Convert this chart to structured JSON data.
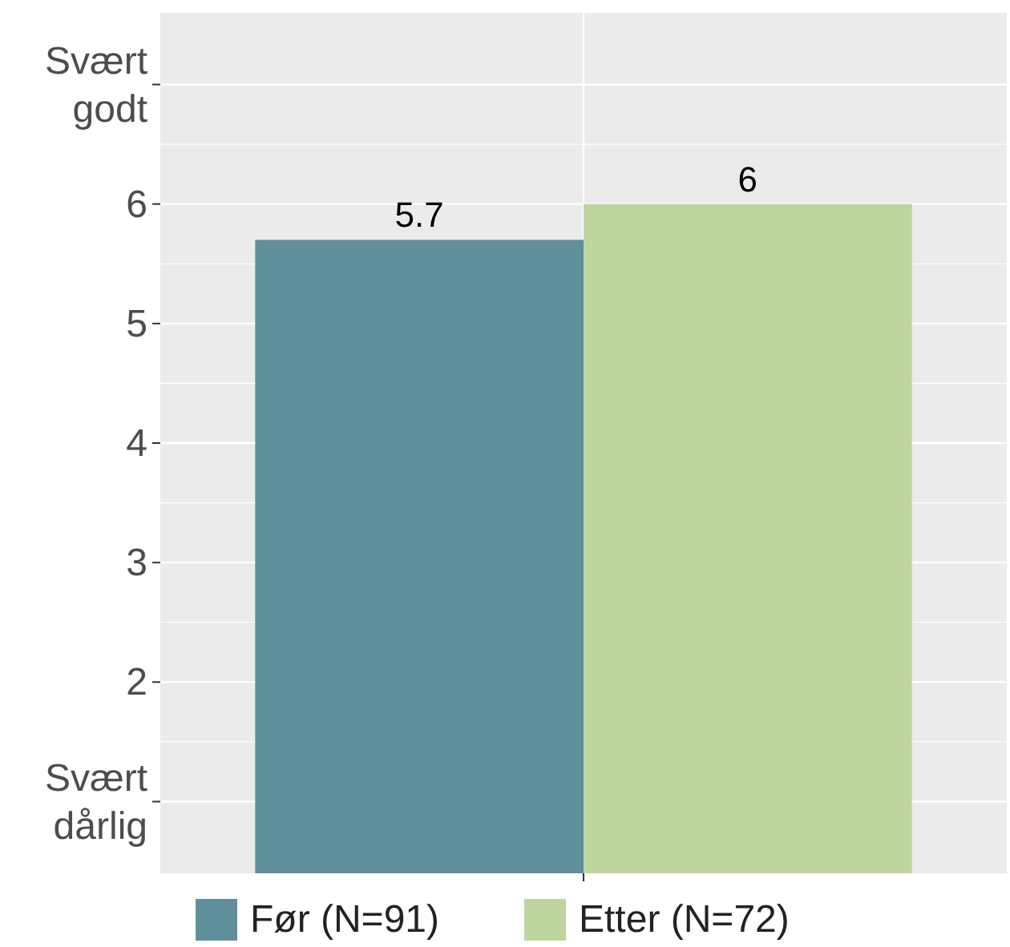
{
  "chart_data": {
    "type": "bar",
    "categories": [
      null
    ],
    "series": [
      {
        "name": "Før (N=91)",
        "color": "#5f8f9b",
        "values": [
          5.7
        ]
      },
      {
        "name": "Etter (N=72)",
        "color": "#bed59f",
        "values": [
          6
        ]
      }
    ],
    "ylim": [
      0.4,
      7.6
    ],
    "yticks": [
      {
        "value": 1,
        "label": "Svært\ndårlig"
      },
      2,
      3,
      4,
      5,
      6,
      {
        "value": 7,
        "label": "Svært\ngodt"
      }
    ],
    "grid": true,
    "legend": "bottom",
    "data_labels": true
  }
}
